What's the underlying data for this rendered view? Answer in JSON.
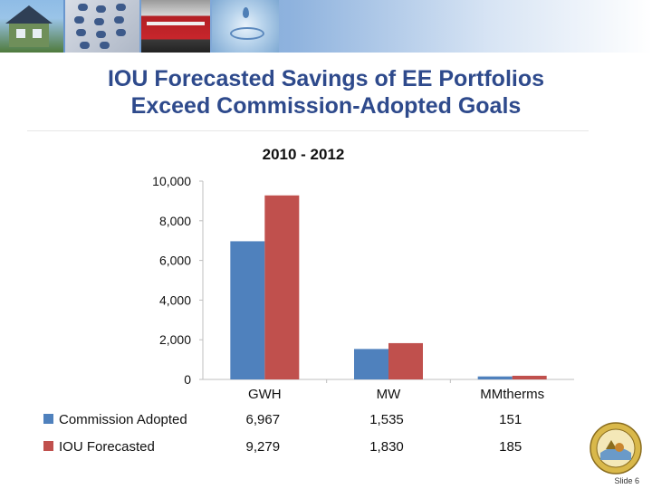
{
  "header": {
    "title_line1": "IOU Forecasted Savings of EE Portfolios",
    "title_line2": "Exceed Commission-Adopted Goals"
  },
  "chart_data": {
    "type": "bar",
    "title": "2010 - 2012",
    "categories": [
      "GWH",
      "MW",
      "MMtherms"
    ],
    "series": [
      {
        "name": "Commission Adopted",
        "color": "#4f81bd",
        "values": [
          6967,
          1535,
          151
        ],
        "labels": [
          "6,967",
          "1,535",
          "151"
        ]
      },
      {
        "name": "IOU Forecasted",
        "color": "#c0504d",
        "values": [
          9279,
          1830,
          185
        ],
        "labels": [
          "9,279",
          "1,830",
          "185"
        ]
      }
    ],
    "ylim": [
      0,
      10000
    ],
    "yticks": [
      0,
      2000,
      4000,
      6000,
      8000,
      10000
    ],
    "ytick_labels": [
      "0",
      "2,000",
      "4,000",
      "6,000",
      "8,000",
      "10,000"
    ],
    "xlabel": "",
    "ylabel": "",
    "grid": false,
    "legend": "bottom data table"
  },
  "footer": {
    "slide_label": "Slide 6"
  },
  "seal": {
    "text": "GREAT SEAL OF THE STATE OF CALIFORNIA",
    "motto": "EUREKA"
  }
}
